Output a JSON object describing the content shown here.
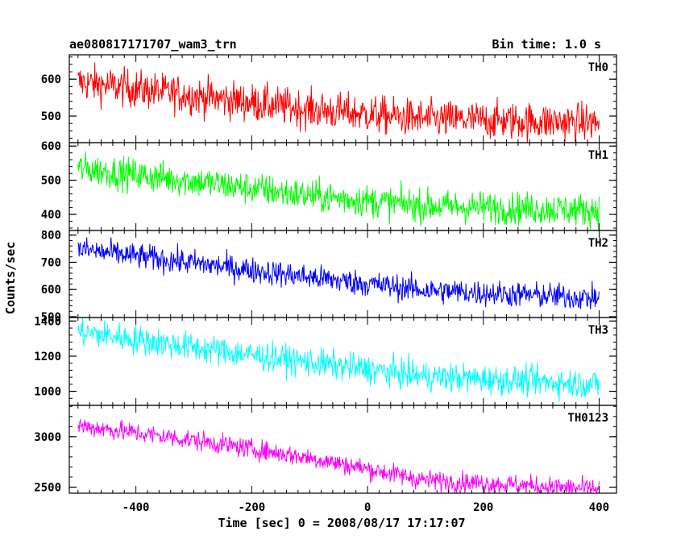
{
  "chart_data": {
    "type": "line",
    "title": "ae080817171707_wam3_trn",
    "subtitle": "Bin time: 1.0 s",
    "xlabel": "Time [sec] 0 = 2008/08/17 17:17:07",
    "ylabel": "Counts/sec",
    "xlim": [
      -515,
      430
    ],
    "xticks": [
      -400,
      -200,
      0,
      200,
      400
    ],
    "grid": false,
    "panels": [
      {
        "name": "TH0",
        "color": "#ff0000",
        "ylim": [
          428,
          666
        ],
        "yticks": [
          500,
          600
        ],
        "trend": [
          [
            -500,
            592
          ],
          [
            -300,
            555
          ],
          [
            -100,
            518
          ],
          [
            100,
            492
          ],
          [
            400,
            482
          ]
        ],
        "noise": 26
      },
      {
        "name": "TH1",
        "color": "#00ff00",
        "ylim": [
          353,
          610
        ],
        "yticks": [
          400,
          500,
          600
        ],
        "trend": [
          [
            -500,
            535
          ],
          [
            -300,
            497
          ],
          [
            -100,
            455
          ],
          [
            100,
            425
          ],
          [
            400,
            412
          ]
        ],
        "noise": 24
      },
      {
        "name": "TH2",
        "color": "#0000ff",
        "ylim": [
          497,
          817
        ],
        "yticks": [
          500,
          600,
          700,
          800
        ],
        "trend": [
          [
            -500,
            748
          ],
          [
            -300,
            697
          ],
          [
            -100,
            645
          ],
          [
            100,
            597
          ],
          [
            400,
            568
          ]
        ],
        "noise": 24
      },
      {
        "name": "TH3",
        "color": "#00ffff",
        "ylim": [
          920,
          1420
        ],
        "yticks": [
          1000,
          1200,
          1400
        ],
        "trend": [
          [
            -500,
            1340
          ],
          [
            -300,
            1250
          ],
          [
            -100,
            1165
          ],
          [
            100,
            1085
          ],
          [
            400,
            1040
          ]
        ],
        "noise": 42
      },
      {
        "name": "TH0123",
        "color": "#ff00ff",
        "ylim": [
          2440,
          3310
        ],
        "yticks": [
          2500,
          3000
        ],
        "trend": [
          [
            -500,
            3110
          ],
          [
            -300,
            2965
          ],
          [
            -100,
            2790
          ],
          [
            100,
            2570
          ],
          [
            400,
            2480
          ]
        ],
        "noise": 50
      }
    ]
  }
}
